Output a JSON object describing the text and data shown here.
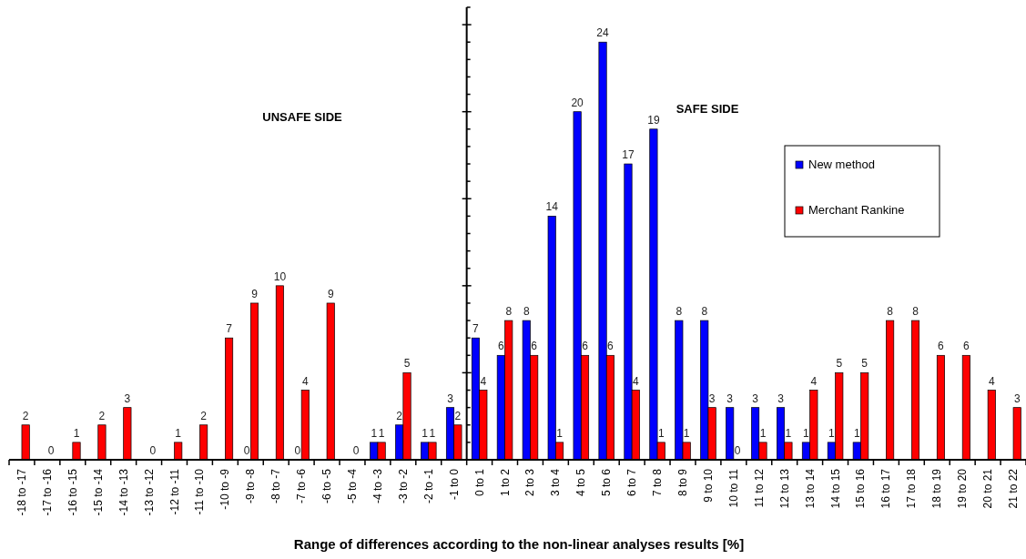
{
  "chart_data": {
    "type": "bar",
    "xlabel": "Range of differences according to the non-linear analyses results [%]",
    "categories": [
      "-18 to -17",
      "-17 to -16",
      "-16 to -15",
      "-15 to -14",
      "-14 to -13",
      "-13 to -12",
      "-12 to -11",
      "-11 to -10",
      "-10 to -9",
      "-9 to -8",
      "-8 to -7",
      "-7 to -6",
      "-6 to -5",
      "-5 to -4",
      "-4 to -3",
      "-3 to -2",
      "-2 to -1",
      "-1 to 0",
      "0 to 1",
      "1 to 2",
      "2 to 3",
      "3 to 4",
      "4 to 5",
      "5 to 6",
      "6 to 7",
      "7 to 8",
      "8 to 9",
      "9 to 10",
      "10 to 11",
      "11 to 12",
      "12 to 13",
      "13 to 14",
      "14 to 15",
      "15 to 16",
      "16 to 17",
      "17 to 18",
      "18 to 19",
      "19 to 20",
      "20 to 21",
      "21 to 22"
    ],
    "series": [
      {
        "name": "New method",
        "color": "#0000ff",
        "values": [
          null,
          null,
          null,
          null,
          null,
          null,
          null,
          null,
          null,
          0,
          null,
          0,
          null,
          null,
          1,
          2,
          1,
          3,
          7,
          6,
          8,
          14,
          20,
          24,
          17,
          19,
          8,
          8,
          3,
          3,
          3,
          1,
          1,
          1,
          null,
          null,
          null,
          null,
          null,
          null
        ]
      },
      {
        "name": "Merchant Rankine",
        "color": "#ff0000",
        "values": [
          2,
          0,
          1,
          2,
          3,
          0,
          1,
          2,
          7,
          9,
          10,
          4,
          9,
          0,
          1,
          5,
          1,
          2,
          4,
          8,
          6,
          1,
          6,
          6,
          4,
          1,
          1,
          3,
          0,
          1,
          1,
          4,
          5,
          5,
          8,
          8,
          6,
          6,
          4,
          3
        ]
      }
    ],
    "tick_labels": "x",
    "data_labels": true,
    "legend": "right",
    "annotations": [
      "UNSAFE SIDE",
      "SAFE SIDE"
    ]
  }
}
